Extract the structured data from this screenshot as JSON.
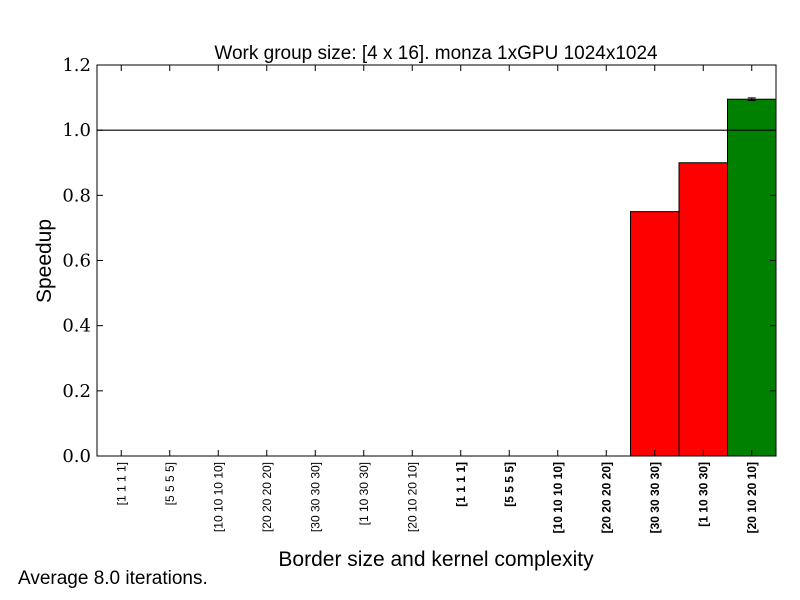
{
  "chart_data": {
    "type": "bar",
    "title": "Work group size: [4 x 16]. monza 1xGPU 1024x1024",
    "xlabel": "Border size and kernel complexity",
    "ylabel": "Speedup",
    "ylim": [
      0.0,
      1.2
    ],
    "yticks": [
      "0.0",
      "0.2",
      "0.4",
      "0.6",
      "0.8",
      "1.0",
      "1.2"
    ],
    "reference_line": 1.0,
    "grid": false,
    "categories": [
      {
        "label": "[1 1 1 1]",
        "bold": false
      },
      {
        "label": "[5 5 5 5]",
        "bold": false
      },
      {
        "label": "[10 10 10 10]",
        "bold": false
      },
      {
        "label": "[20 20 20 20]",
        "bold": false
      },
      {
        "label": "[30 30 30 30]",
        "bold": false
      },
      {
        "label": "[1 10 30 30]",
        "bold": false
      },
      {
        "label": "[20 10 20 10]",
        "bold": false
      },
      {
        "label": "[1 1 1 1]",
        "bold": true
      },
      {
        "label": "[5 5 5 5]",
        "bold": true
      },
      {
        "label": "[10 10 10 10]",
        "bold": true
      },
      {
        "label": "[20 20 20 20]",
        "bold": true
      },
      {
        "label": "[30 30 30 30]",
        "bold": true
      },
      {
        "label": "[1 10 30 30]",
        "bold": true
      },
      {
        "label": "[20 10 20 10]",
        "bold": true
      }
    ],
    "values": [
      0,
      0,
      0,
      0,
      0,
      0,
      0,
      0,
      0,
      0,
      0,
      0.75,
      0.9,
      1.095
    ],
    "errors": [
      0,
      0,
      0,
      0,
      0,
      0,
      0,
      0,
      0,
      0,
      0,
      0,
      0,
      0.004
    ],
    "colors": {
      "below_reference": "#ff0000",
      "above_reference": "#008000",
      "edge": "#000000"
    }
  },
  "footnote": "Average 8.0 iterations."
}
